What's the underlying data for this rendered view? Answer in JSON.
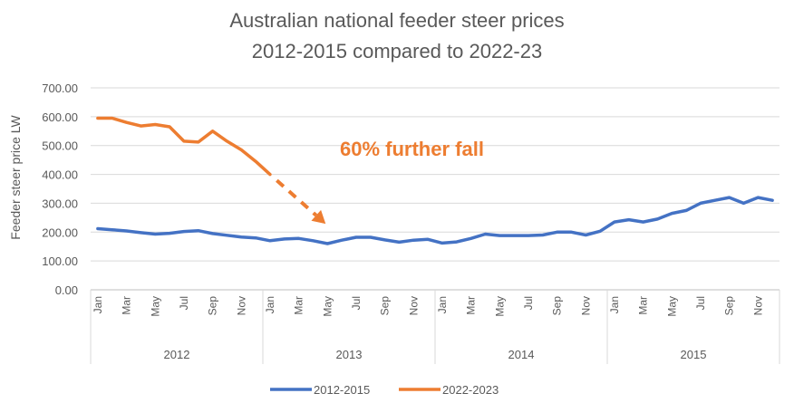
{
  "chart_data": {
    "type": "line",
    "title": [
      "Australian national feeder steer prices",
      "2012-2015 compared to 2022-23"
    ],
    "ylabel": "Feeder steer price LW",
    "ylim": [
      0,
      700
    ],
    "yticks": [
      "0.00",
      "100.00",
      "200.00",
      "300.00",
      "400.00",
      "500.00",
      "600.00",
      "700.00"
    ],
    "grid": "horizontal",
    "legend": "bottom",
    "month_labels": [
      "Jan",
      "Mar",
      "May",
      "Jul",
      "Sep",
      "Nov"
    ],
    "years": [
      "2012",
      "2013",
      "2014",
      "2015"
    ],
    "series": [
      {
        "name": "2012-2015",
        "color": "#4472C4",
        "values": [
          212,
          208,
          204,
          198,
          193,
          196,
          202,
          205,
          195,
          189,
          183,
          180,
          170,
          176,
          178,
          170,
          160,
          172,
          182,
          182,
          173,
          165,
          172,
          175,
          162,
          166,
          178,
          193,
          188,
          188,
          188,
          190,
          200,
          200,
          190,
          203,
          235,
          243,
          235,
          245,
          265,
          275,
          300,
          310,
          320,
          300,
          320,
          310
        ]
      },
      {
        "name": "2022-2023",
        "color": "#ED7D31",
        "values": [
          595,
          595,
          580,
          568,
          573,
          565,
          515,
          512,
          550,
          515,
          485,
          445,
          400
        ]
      }
    ],
    "projection": {
      "from": 400,
      "to": 210,
      "color": "#ED7D31"
    },
    "annotation": {
      "text": "60% further fall",
      "color": "#ED7D31"
    }
  }
}
